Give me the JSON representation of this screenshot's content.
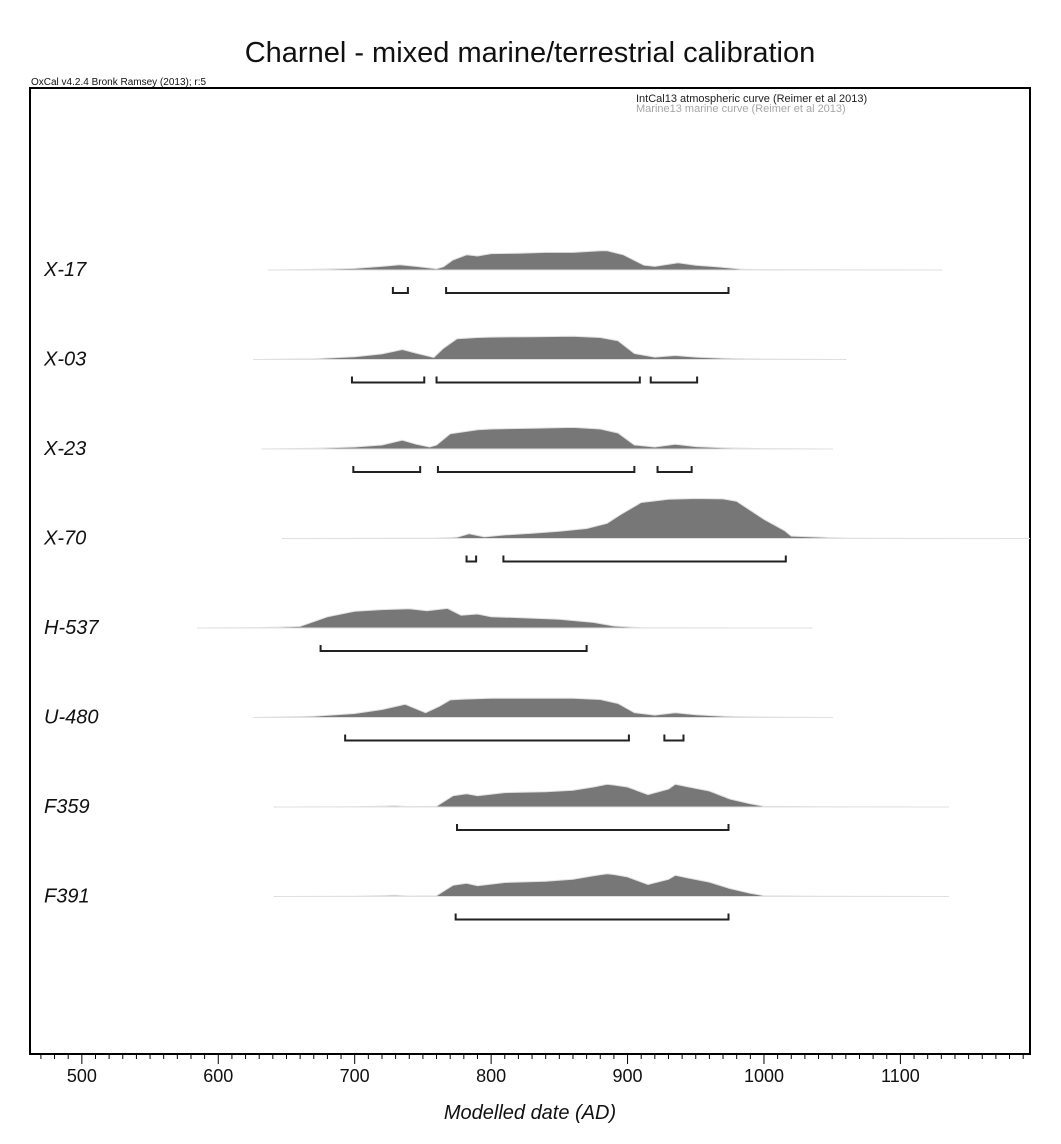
{
  "chart_data": {
    "type": "area",
    "title": "Charnel - mixed marine/terrestrial calibration",
    "software": "OxCal v4.2.4 Bronk Ramsey (2013); r:5",
    "curves": [
      "IntCal13 atmospheric curve (Reimer et al 2013)",
      "Marine13 marine curve (Reimer et al 2013)"
    ],
    "xlabel": "Modelled date (AD)",
    "xlim": [
      462,
      1195
    ],
    "xticks": [
      500,
      600,
      700,
      800,
      900,
      1000,
      1100
    ],
    "grid": false,
    "colors": {
      "fill": "#777777",
      "outline": "#e0e0e0",
      "line": "#222222",
      "frame": "#000000"
    },
    "series": [
      {
        "name": "X-17",
        "range": [
          637,
          1130
        ],
        "x": [
          637,
          660,
          700,
          720,
          733,
          745,
          760,
          765,
          772,
          782,
          790,
          800,
          820,
          840,
          860,
          880,
          885,
          897,
          912,
          920,
          937,
          950,
          965,
          985,
          1000,
          1040,
          1080,
          1130
        ],
        "y": [
          0,
          0.01,
          0.04,
          0.09,
          0.13,
          0.09,
          0.03,
          0.08,
          0.25,
          0.38,
          0.35,
          0.41,
          0.42,
          0.44,
          0.44,
          0.48,
          0.48,
          0.38,
          0.12,
          0.09,
          0.18,
          0.12,
          0.08,
          0.02,
          0.01,
          0.005,
          0.002,
          0
        ],
        "hpd": [
          [
            728,
            739
          ],
          [
            767,
            974
          ]
        ]
      },
      {
        "name": "X-03",
        "range": [
          626,
          1060
        ],
        "x": [
          626,
          670,
          700,
          720,
          735,
          745,
          758,
          765,
          775,
          790,
          800,
          830,
          860,
          880,
          893,
          905,
          920,
          935,
          950,
          970,
          1000,
          1020,
          1060
        ],
        "y": [
          0,
          0.02,
          0.07,
          0.14,
          0.25,
          0.16,
          0.05,
          0.28,
          0.52,
          0.55,
          0.56,
          0.57,
          0.58,
          0.55,
          0.47,
          0.15,
          0.06,
          0.1,
          0.06,
          0.03,
          0.01,
          0.004,
          0
        ],
        "hpd": [
          [
            698,
            751
          ],
          [
            760,
            909
          ],
          [
            917,
            951
          ]
        ]
      },
      {
        "name": "X-23",
        "range": [
          632,
          1050
        ],
        "x": [
          632,
          670,
          700,
          720,
          735,
          745,
          755,
          760,
          770,
          790,
          800,
          830,
          860,
          880,
          893,
          905,
          920,
          935,
          950,
          970,
          1000,
          1020,
          1050
        ],
        "y": [
          0,
          0.02,
          0.05,
          0.1,
          0.22,
          0.12,
          0.05,
          0.1,
          0.38,
          0.48,
          0.5,
          0.52,
          0.54,
          0.5,
          0.4,
          0.1,
          0.05,
          0.12,
          0.06,
          0.03,
          0.01,
          0.004,
          0
        ],
        "hpd": [
          [
            699,
            748
          ],
          [
            761,
            905
          ],
          [
            922,
            947
          ]
        ]
      },
      {
        "name": "X-70",
        "range": [
          647,
          1195
        ],
        "x": [
          647,
          700,
          760,
          775,
          784,
          795,
          810,
          830,
          850,
          870,
          885,
          895,
          910,
          930,
          950,
          970,
          980,
          1000,
          1015,
          1020,
          1060,
          1100,
          1195
        ],
        "y": [
          0,
          0.003,
          0.01,
          0.03,
          0.12,
          0.04,
          0.09,
          0.13,
          0.18,
          0.25,
          0.38,
          0.6,
          0.9,
          0.98,
          1.0,
          0.99,
          0.93,
          0.48,
          0.2,
          0.06,
          0.01,
          0.003,
          0
        ],
        "hpd": [
          [
            782,
            789
          ],
          [
            809,
            1016
          ]
        ]
      },
      {
        "name": "H-537",
        "range": [
          585,
          1035
        ],
        "x": [
          585,
          630,
          660,
          680,
          700,
          720,
          740,
          753,
          768,
          778,
          790,
          800,
          820,
          850,
          875,
          890,
          910,
          960,
          1035
        ],
        "y": [
          0,
          0.01,
          0.04,
          0.28,
          0.42,
          0.46,
          0.48,
          0.43,
          0.49,
          0.32,
          0.35,
          0.28,
          0.26,
          0.22,
          0.14,
          0.05,
          0.01,
          0.002,
          0
        ],
        "hpd": [
          [
            675,
            870
          ]
        ]
      },
      {
        "name": "U-480",
        "range": [
          626,
          1050
        ],
        "x": [
          626,
          670,
          700,
          720,
          737,
          752,
          762,
          770,
          780,
          800,
          830,
          860,
          880,
          893,
          905,
          920,
          935,
          950,
          970,
          1000,
          1050
        ],
        "y": [
          0,
          0.03,
          0.1,
          0.2,
          0.33,
          0.12,
          0.28,
          0.44,
          0.46,
          0.48,
          0.48,
          0.48,
          0.45,
          0.35,
          0.12,
          0.06,
          0.12,
          0.07,
          0.03,
          0.01,
          0
        ],
        "hpd": [
          [
            693,
            901
          ],
          [
            927,
            941
          ]
        ]
      },
      {
        "name": "F359",
        "range": [
          641,
          1135
        ],
        "x": [
          641,
          700,
          730,
          740,
          760,
          772,
          782,
          790,
          810,
          840,
          860,
          875,
          885,
          890,
          900,
          915,
          930,
          935,
          945,
          960,
          975,
          990,
          1000,
          1040,
          1135
        ],
        "y": [
          0,
          0.005,
          0.03,
          0.01,
          0.02,
          0.28,
          0.33,
          0.28,
          0.36,
          0.38,
          0.42,
          0.5,
          0.57,
          0.55,
          0.5,
          0.31,
          0.45,
          0.57,
          0.5,
          0.4,
          0.2,
          0.08,
          0.02,
          0.005,
          0
        ],
        "hpd": [
          [
            775,
            974
          ]
        ]
      },
      {
        "name": "F391",
        "range": [
          641,
          1135
        ],
        "x": [
          641,
          700,
          730,
          740,
          760,
          772,
          782,
          790,
          810,
          840,
          860,
          875,
          885,
          890,
          900,
          915,
          930,
          935,
          945,
          960,
          975,
          990,
          1000,
          1040,
          1135
        ],
        "y": [
          0,
          0.005,
          0.03,
          0.01,
          0.02,
          0.28,
          0.33,
          0.27,
          0.35,
          0.38,
          0.43,
          0.52,
          0.57,
          0.55,
          0.49,
          0.3,
          0.43,
          0.53,
          0.46,
          0.36,
          0.2,
          0.08,
          0.02,
          0.005,
          0
        ],
        "hpd": [
          [
            774,
            974
          ]
        ]
      }
    ]
  }
}
